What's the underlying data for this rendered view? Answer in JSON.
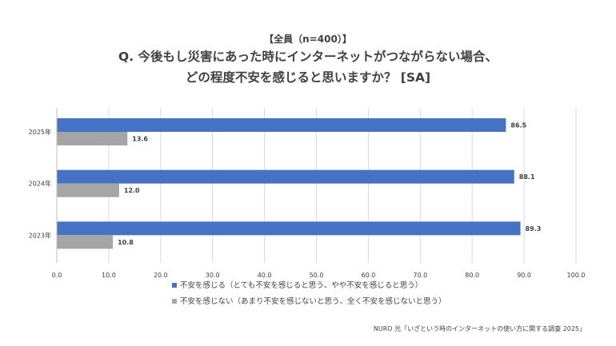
{
  "chart_data": {
    "type": "bar",
    "orientation": "horizontal",
    "title_sub": "【全員（n=400）】",
    "title_line1": "Q. 今後もし災害にあった時にインターネットがつながらない場合、",
    "title_line2": "どの程度不安を感じると思いますか？ [SA]",
    "categories": [
      "2025年",
      "2024年",
      "2023年"
    ],
    "series": [
      {
        "name": "不安を感じる（とても不安を感じると思う、やや不安を感じると思う）",
        "color": "#4472C4",
        "values": [
          86.5,
          88.1,
          89.3
        ]
      },
      {
        "name": "不安を感じない（あまり不安を感じないと思う、全く不安を感じないと思う）",
        "color": "#A5A5A5",
        "values": [
          13.6,
          12.0,
          10.8
        ]
      }
    ],
    "xlim": [
      0,
      100
    ],
    "xticks": [
      "0.0",
      "10.0",
      "20.0",
      "30.0",
      "40.0",
      "50.0",
      "60.0",
      "70.0",
      "80.0",
      "90.0",
      "100.0"
    ],
    "grid": true,
    "legend_position": "bottom",
    "source": "NURO 光「いざという時のインターネットの使い方に関する調査 2025」"
  }
}
